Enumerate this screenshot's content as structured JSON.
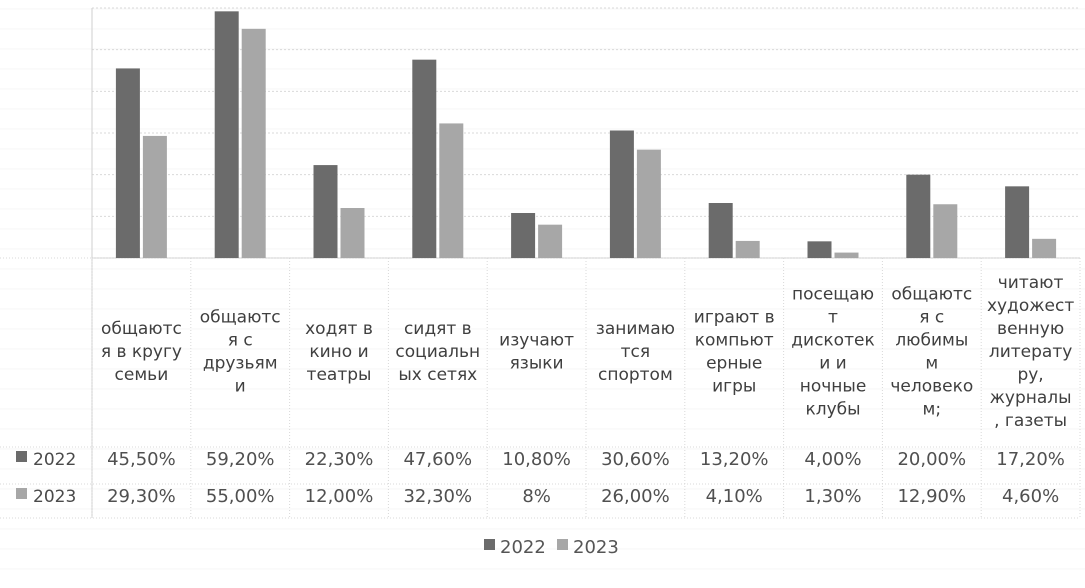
{
  "chart_data": {
    "type": "bar",
    "title": "",
    "xlabel": "",
    "ylabel": "",
    "ylim": [
      0,
      60
    ],
    "grid": true,
    "legend_position": "bottom-center",
    "categories": [
      "общаются в кругу семьи",
      "общаются с друзьями",
      "ходят в кино и театры",
      "сидят в социальных сетях",
      "изучают языки",
      "занимаются спортом",
      "играют в компьютерные игры",
      "посещают дискотеки и ночные клубы",
      "общаются с любимым человеком;",
      "читают художественную литературу, журналы, газеты"
    ],
    "category_label_lines": [
      [
        "общаютс",
        "я в кругу",
        "семьи"
      ],
      [
        "общаютс",
        "я с",
        "друзьям",
        "и"
      ],
      [
        "ходят в",
        "кино и",
        "театры"
      ],
      [
        "сидят в",
        "социальн",
        "ых сетях"
      ],
      [
        "изучают",
        "языки"
      ],
      [
        "занимаю",
        "тся",
        "спортом"
      ],
      [
        "играют в",
        "компьют",
        "ерные",
        "игры"
      ],
      [
        "посещаю",
        "т",
        "дискотек",
        "и и",
        "ночные",
        "клубы"
      ],
      [
        "общаютс",
        "я с",
        "любимы",
        "м",
        "человеко",
        "м;"
      ],
      [
        "читают",
        "художест",
        "венную",
        "литерату",
        "ру,",
        "журналы",
        ", газеты"
      ]
    ],
    "series": [
      {
        "name": "2022",
        "values": [
          45.5,
          59.2,
          22.3,
          47.6,
          10.8,
          30.6,
          13.2,
          4.0,
          20.0,
          17.2
        ],
        "labels": [
          "45,50%",
          "59,20%",
          "22,30%",
          "47,60%",
          "10,80%",
          "30,60%",
          "13,20%",
          "4,00%",
          "20,00%",
          "17,20%"
        ],
        "color": "#6b6b6b"
      },
      {
        "name": "2023",
        "values": [
          29.3,
          55.0,
          12.0,
          32.3,
          8.0,
          26.0,
          4.1,
          1.3,
          12.9,
          4.6
        ],
        "labels": [
          "29,30%",
          "55,00%",
          "12,00%",
          "32,30%",
          "8%",
          "26,00%",
          "4,10%",
          "1,30%",
          "12,90%",
          "4,60%"
        ],
        "color": "#a7a7a7"
      }
    ],
    "legend": [
      {
        "label": "2022",
        "color": "#6b6b6b"
      },
      {
        "label": "2023",
        "color": "#a7a7a7"
      }
    ]
  }
}
